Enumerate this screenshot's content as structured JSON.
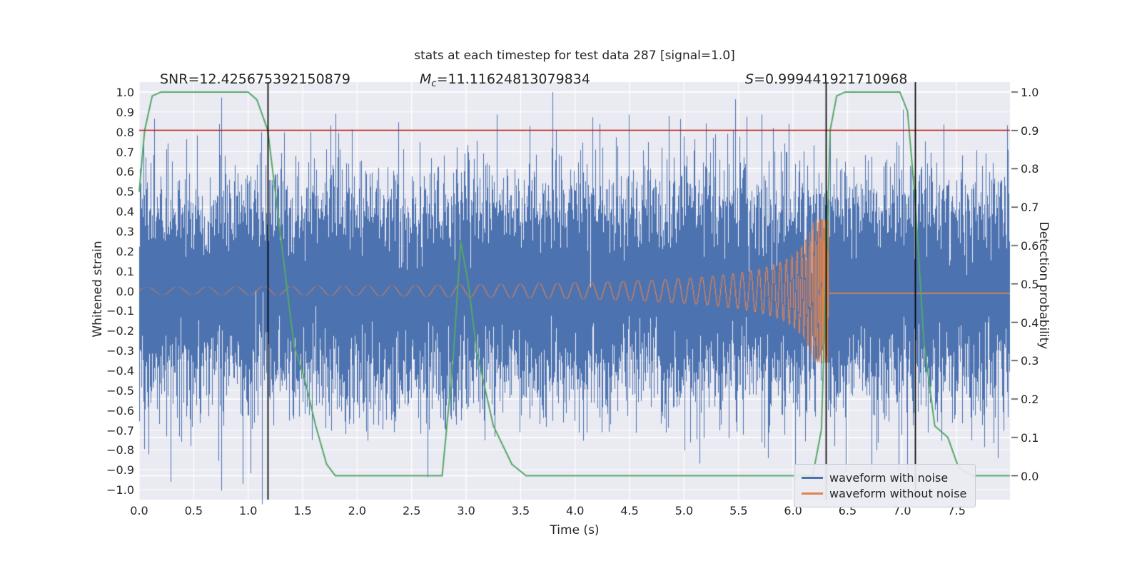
{
  "figure": {
    "title": "stats at each timestep for test data 287 [signal=1.0]",
    "annotations": {
      "snr": "SNR=12.425675392150879",
      "mc_var": "M",
      "mc_sub": "c",
      "mc_value": "=11.11624813079834",
      "s_var": "S",
      "s_value": "=0.999441921710968"
    },
    "x_axis": {
      "label": "Time (s)",
      "values": [
        0.0,
        0.5,
        1.0,
        1.5,
        2.0,
        2.5,
        3.0,
        3.5,
        4.0,
        4.5,
        5.0,
        5.5,
        6.0,
        6.5,
        7.0,
        7.5
      ],
      "labels": [
        "0.0",
        "0.5",
        "1.0",
        "1.5",
        "2.0",
        "2.5",
        "3.0",
        "3.5",
        "4.0",
        "4.5",
        "5.0",
        "5.5",
        "6.0",
        "6.5",
        "7.0",
        "7.5"
      ]
    },
    "y_left": {
      "label": "Whitened strain",
      "values": [
        1.0,
        0.9,
        0.8,
        0.7,
        0.6,
        0.5,
        0.4,
        0.3,
        0.2,
        0.1,
        0.0,
        -0.1,
        -0.2,
        -0.3,
        -0.4,
        -0.5,
        -0.6,
        -0.7,
        -0.8,
        -0.9,
        -1.0
      ],
      "labels": [
        "1.0",
        "0.9",
        "0.8",
        "0.7",
        "0.6",
        "0.5",
        "0.4",
        "0.3",
        "0.2",
        "0.1",
        "0.0",
        "−0.1",
        "−0.2",
        "−0.3",
        "−0.4",
        "−0.5",
        "−0.6",
        "−0.7",
        "−0.8",
        "−0.9",
        "−1.0"
      ]
    },
    "y_right": {
      "label": "Detection probability",
      "values": [
        1.0,
        0.9,
        0.8,
        0.7,
        0.6,
        0.5,
        0.4,
        0.3,
        0.2,
        0.1,
        0.0
      ],
      "labels": [
        "1.0",
        "0.9",
        "0.8",
        "0.7",
        "0.6",
        "0.5",
        "0.4",
        "0.3",
        "0.2",
        "0.1",
        "0.0"
      ]
    },
    "legend": [
      {
        "label": "waveform with noise",
        "color": "#4c72b0"
      },
      {
        "label": "waveform without noise",
        "color": "#dd8452"
      }
    ],
    "colors": {
      "plot_background": "#eaeaf2",
      "grid": "#ffffff",
      "noise": "#4c72b0",
      "signal": "#dd8452",
      "probability": "#55a868",
      "threshold": "#b22222",
      "vline": "#000000",
      "text": "#262626"
    }
  },
  "chart_data": {
    "type": "line",
    "title": "stats at each timestep for test data 287 [signal=1.0]",
    "xlabel": "Time (s)",
    "ylabel_left": "Whitened strain",
    "ylabel_right": "Detection probability",
    "x_range": [
      0,
      7.99
    ],
    "y_left_range": [
      -1.05,
      1.05
    ],
    "y_right_range": [
      0,
      1
    ],
    "right_axis_map": {
      "p0_strain": -0.93,
      "p1_strain": 1.0
    },
    "grid": true,
    "legend_position": "lower right",
    "stats": {
      "SNR": 12.425675392150879,
      "Mc": 11.11624813079834,
      "S": 0.999441921710968
    },
    "series": [
      {
        "name": "waveform with noise",
        "kind": "gaussian_noise",
        "color": "#4c72b0",
        "std": 0.27,
        "samples_per_pixel": 12,
        "seed": 287,
        "spikes": [
          [
            0.29,
            -0.96
          ],
          [
            3.79,
            1.0
          ],
          [
            6.97,
            -0.93
          ]
        ]
      },
      {
        "name": "waveform without noise",
        "kind": "chirp",
        "color": "#dd8452",
        "amp0": 0.02,
        "amp_exp": 0.75,
        "amp_max": 0.36,
        "f0": 3.5,
        "f_exp": 0.6,
        "t_merger": 6.33,
        "post_merger_level": -0.012
      },
      {
        "name": "detection probability",
        "kind": "polyline",
        "axis": "right",
        "color": "#55a868",
        "points": [
          [
            0.0,
            0.74
          ],
          [
            0.05,
            0.9
          ],
          [
            0.12,
            0.99
          ],
          [
            0.2,
            1.0
          ],
          [
            1.0,
            1.0
          ],
          [
            1.08,
            0.98
          ],
          [
            1.18,
            0.9
          ],
          [
            1.3,
            0.62
          ],
          [
            1.42,
            0.34
          ],
          [
            1.52,
            0.25
          ],
          [
            1.62,
            0.13
          ],
          [
            1.72,
            0.03
          ],
          [
            1.8,
            0.0
          ],
          [
            2.78,
            0.0
          ],
          [
            2.88,
            0.3
          ],
          [
            2.95,
            0.61
          ],
          [
            3.02,
            0.5
          ],
          [
            3.1,
            0.32
          ],
          [
            3.25,
            0.13
          ],
          [
            3.42,
            0.03
          ],
          [
            3.55,
            0.0
          ],
          [
            6.18,
            0.0
          ],
          [
            6.26,
            0.12
          ],
          [
            6.3,
            0.5
          ],
          [
            6.34,
            0.9
          ],
          [
            6.4,
            0.99
          ],
          [
            6.48,
            1.0
          ],
          [
            6.98,
            1.0
          ],
          [
            7.05,
            0.95
          ],
          [
            7.12,
            0.72
          ],
          [
            7.2,
            0.35
          ],
          [
            7.3,
            0.13
          ],
          [
            7.42,
            0.1
          ],
          [
            7.52,
            0.02
          ],
          [
            7.65,
            0.0
          ],
          [
            7.99,
            0.0
          ]
        ]
      }
    ],
    "threshold_line": {
      "axis": "right",
      "value": 0.9,
      "color": "#b22222"
    },
    "event_vlines": {
      "x": [
        1.18,
        6.3,
        7.12
      ],
      "color": "#000000"
    }
  }
}
